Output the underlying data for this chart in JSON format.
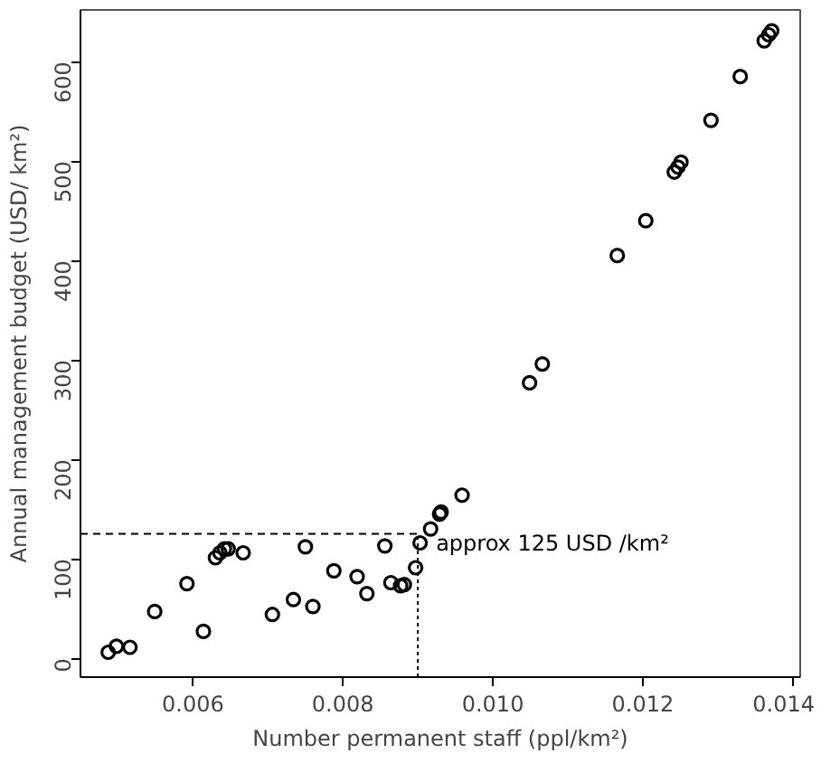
{
  "chart_data": {
    "type": "scatter",
    "xlabel": "Number permanent staff (ppl/km²)",
    "ylabel": "Annual management budget (USD/ km²)",
    "xlim": [
      0.0045,
      0.0141
    ],
    "ylim": [
      -19,
      652
    ],
    "xticks": [
      {
        "value": 0.006,
        "label": "0.006"
      },
      {
        "value": 0.008,
        "label": "0.008"
      },
      {
        "value": 0.01,
        "label": "0.010"
      },
      {
        "value": 0.012,
        "label": "0.012"
      },
      {
        "value": 0.014,
        "label": "0.014"
      }
    ],
    "yticks": [
      0,
      100,
      200,
      300,
      400,
      500,
      600
    ],
    "grid": false,
    "marker": "circle",
    "ref_lines": [
      {
        "axis": "y",
        "value": 125,
        "label": "approx 125 USD /km²",
        "line_style": "dashed",
        "color": "#000000"
      },
      {
        "axis": "x",
        "value": 0.009,
        "line_style": "dotted",
        "color": "#000000"
      }
    ],
    "series": [
      {
        "color": "#000000",
        "x": [
          0.00487,
          0.00498,
          0.00516,
          0.00549,
          0.00592,
          0.00614,
          0.0063,
          0.00636,
          0.00642,
          0.00647,
          0.00667,
          0.00706,
          0.00734,
          0.0075,
          0.0076,
          0.00788,
          0.00819,
          0.00832,
          0.00856,
          0.00864,
          0.00877,
          0.00882,
          0.00897,
          0.00903,
          0.00917,
          0.00929,
          0.00931,
          0.00959,
          0.01049,
          0.01066,
          0.01166,
          0.01204,
          0.01242,
          0.01247,
          0.01251,
          0.01291,
          0.0133,
          0.01362,
          0.01368,
          0.01372
        ],
        "values": [
          6,
          12,
          11,
          47,
          75,
          27,
          101,
          106,
          110,
          110,
          106,
          44,
          59,
          112,
          52,
          88,
          82,
          65,
          113,
          76,
          73,
          74,
          91,
          116,
          130,
          145,
          147,
          164,
          277,
          296,
          405,
          440,
          489,
          494,
          499,
          541,
          585,
          621,
          627,
          631
        ]
      }
    ]
  }
}
